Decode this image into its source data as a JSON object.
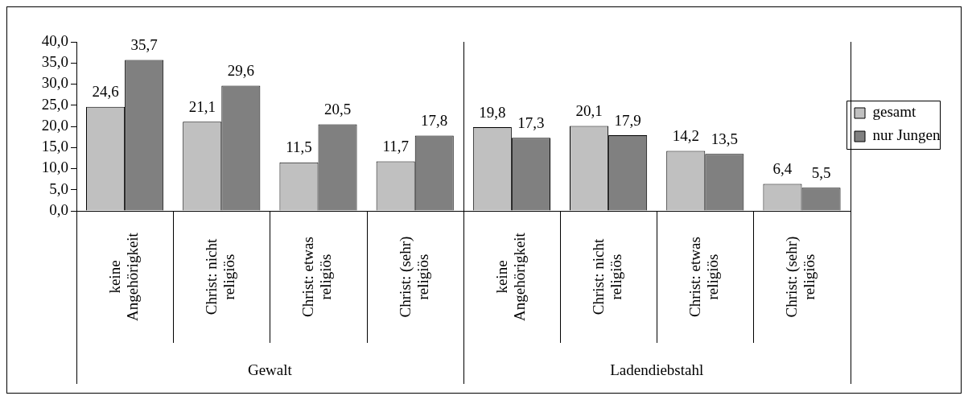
{
  "chart_data": {
    "type": "bar",
    "categories": [
      "keine Angehörigkeit",
      "Christ: nicht religiös",
      "Christ: etwas religiös",
      "Christ: (sehr) religiös",
      "keine Angehörigkeit",
      "Christ: nicht religiös",
      "Christ: etwas religiös",
      "Christ: (sehr) religiös"
    ],
    "series": [
      {
        "name": "gesamt",
        "color": "#c0c0c0",
        "values": [
          24.6,
          21.1,
          11.5,
          11.7,
          19.8,
          20.1,
          14.2,
          6.4
        ],
        "value_labels": [
          "24,6",
          "21,1",
          "11,5",
          "11,7",
          "19,8",
          "20,1",
          "14,2",
          "6,4"
        ]
      },
      {
        "name": "nur Jungen",
        "color": "#808080",
        "values": [
          35.7,
          29.6,
          20.5,
          17.8,
          17.3,
          17.9,
          13.5,
          5.5
        ],
        "value_labels": [
          "35,7",
          "29,6",
          "20,5",
          "17,8",
          "17,3",
          "17,9",
          "13,5",
          "5,5"
        ]
      }
    ],
    "ylim": [
      0,
      40
    ],
    "yticks": [
      {
        "value": 0,
        "label": "0,0"
      },
      {
        "value": 5,
        "label": "5,0"
      },
      {
        "value": 10,
        "label": "10,0"
      },
      {
        "value": 15,
        "label": "15,0"
      },
      {
        "value": 20,
        "label": "20,0"
      },
      {
        "value": 25,
        "label": "25,0"
      },
      {
        "value": 30,
        "label": "30,0"
      },
      {
        "value": 35,
        "label": "35,0"
      },
      {
        "value": 40,
        "label": "40,0"
      }
    ],
    "legend": "right",
    "annotations": [
      "Gewalt",
      "Ladendiebstahl"
    ]
  }
}
